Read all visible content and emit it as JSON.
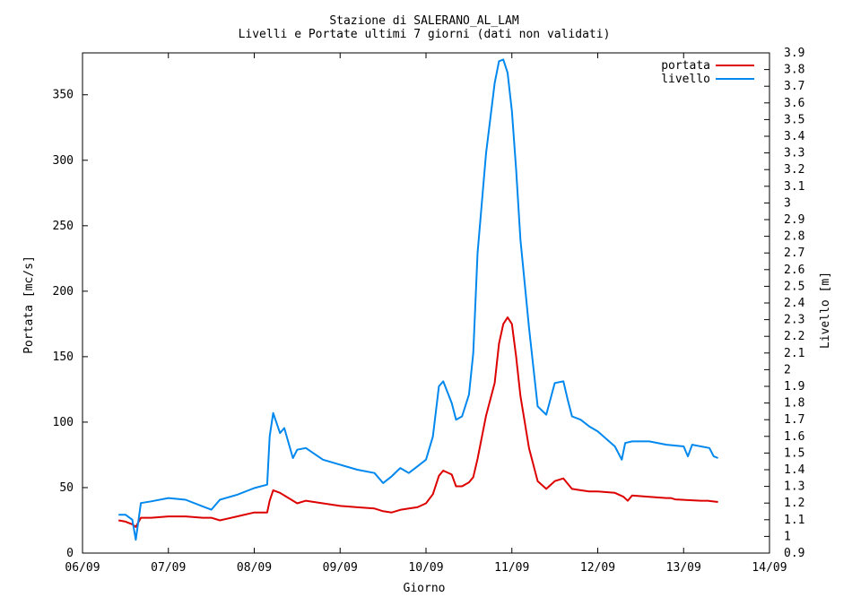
{
  "chart_data": {
    "type": "line",
    "title": "Stazione di SALERANO_AL_LAM",
    "subtitle": "Livelli e Portate ultimi 7 giorni (dati non validati)",
    "xlabel": "Giorno",
    "ylabel": "Portata [mc/s]",
    "y2label": "Livello [m]",
    "legend_position": "top-right",
    "grid": false,
    "xlim": [
      0,
      8
    ],
    "x_ticks": [
      "06/09",
      "07/09",
      "08/09",
      "09/09",
      "10/09",
      "11/09",
      "12/09",
      "13/09",
      "14/09"
    ],
    "ylim": [
      0,
      382
    ],
    "y_ticks": [
      0,
      50,
      100,
      150,
      200,
      250,
      300,
      350
    ],
    "y2lim": [
      0.9,
      3.9
    ],
    "y2_ticks": [
      "0.9",
      "1",
      "1.1",
      "1.2",
      "1.3",
      "1.4",
      "1.5",
      "1.6",
      "1.7",
      "1.8",
      "1.9",
      "2",
      "2.1",
      "2.2",
      "2.3",
      "2.4",
      "2.5",
      "2.6",
      "2.7",
      "2.8",
      "2.9",
      "3",
      "3.1",
      "3.2",
      "3.3",
      "3.4",
      "3.5",
      "3.6",
      "3.7",
      "3.8",
      "3.9"
    ],
    "series": [
      {
        "name": "portata",
        "axis": "left",
        "color": "#dd0000",
        "x": [
          0.42,
          0.5,
          0.58,
          0.62,
          0.68,
          0.8,
          1,
          1.2,
          1.4,
          1.5,
          1.6,
          1.8,
          2,
          2.15,
          2.18,
          2.22,
          2.3,
          2.4,
          2.5,
          2.6,
          2.8,
          3,
          3.2,
          3.4,
          3.5,
          3.6,
          3.7,
          3.8,
          3.9,
          4,
          4.08,
          4.15,
          4.2,
          4.3,
          4.35,
          4.42,
          4.5,
          4.55,
          4.6,
          4.7,
          4.8,
          4.85,
          4.9,
          4.95,
          5,
          5.05,
          5.1,
          5.2,
          5.3,
          5.4,
          5.5,
          5.6,
          5.65,
          5.7,
          5.8,
          5.9,
          6,
          6.2,
          6.3,
          6.35,
          6.4,
          6.6,
          6.8,
          6.85,
          6.9,
          7.2,
          7.28,
          7.4
        ],
        "values": [
          25,
          24,
          22,
          20,
          27,
          27,
          28,
          28,
          27,
          27,
          25,
          28,
          31,
          31,
          40,
          48,
          46,
          42,
          38,
          40,
          38,
          36,
          35,
          34,
          32,
          31,
          33,
          34,
          35,
          38,
          45,
          59,
          63,
          60,
          51,
          51,
          54,
          58,
          72,
          105,
          130,
          160,
          175,
          180,
          175,
          150,
          120,
          80,
          55,
          49,
          55,
          57,
          53,
          49,
          48,
          47,
          47,
          46,
          43,
          40,
          44,
          43,
          42,
          42,
          41,
          40,
          40,
          39
        ]
      },
      {
        "name": "livello",
        "axis": "right",
        "color": "#0088ee",
        "x": [
          0.42,
          0.5,
          0.58,
          0.62,
          0.68,
          0.8,
          1,
          1.2,
          1.4,
          1.5,
          1.6,
          1.8,
          2,
          2.15,
          2.18,
          2.22,
          2.3,
          2.35,
          2.45,
          2.5,
          2.6,
          2.8,
          3,
          3.2,
          3.4,
          3.5,
          3.6,
          3.7,
          3.8,
          3.9,
          4,
          4.08,
          4.15,
          4.2,
          4.3,
          4.35,
          4.42,
          4.5,
          4.55,
          4.6,
          4.7,
          4.8,
          4.85,
          4.9,
          4.95,
          5,
          5.05,
          5.1,
          5.2,
          5.3,
          5.4,
          5.5,
          5.6,
          5.65,
          5.7,
          5.8,
          5.9,
          6,
          6.2,
          6.28,
          6.32,
          6.4,
          6.6,
          6.8,
          7,
          7.05,
          7.1,
          7.3,
          7.35,
          7.4
        ],
        "values": [
          1.13,
          1.13,
          1.1,
          0.98,
          1.2,
          1.21,
          1.23,
          1.22,
          1.18,
          1.16,
          1.22,
          1.25,
          1.29,
          1.31,
          1.6,
          1.74,
          1.62,
          1.65,
          1.47,
          1.52,
          1.53,
          1.46,
          1.43,
          1.4,
          1.38,
          1.32,
          1.36,
          1.41,
          1.38,
          1.42,
          1.46,
          1.6,
          1.9,
          1.93,
          1.8,
          1.7,
          1.72,
          1.85,
          2.1,
          2.7,
          3.3,
          3.72,
          3.85,
          3.86,
          3.78,
          3.55,
          3.2,
          2.78,
          2.25,
          1.78,
          1.73,
          1.92,
          1.93,
          1.82,
          1.72,
          1.7,
          1.66,
          1.63,
          1.54,
          1.46,
          1.56,
          1.57,
          1.57,
          1.55,
          1.54,
          1.48,
          1.55,
          1.53,
          1.48,
          1.47
        ]
      }
    ]
  }
}
